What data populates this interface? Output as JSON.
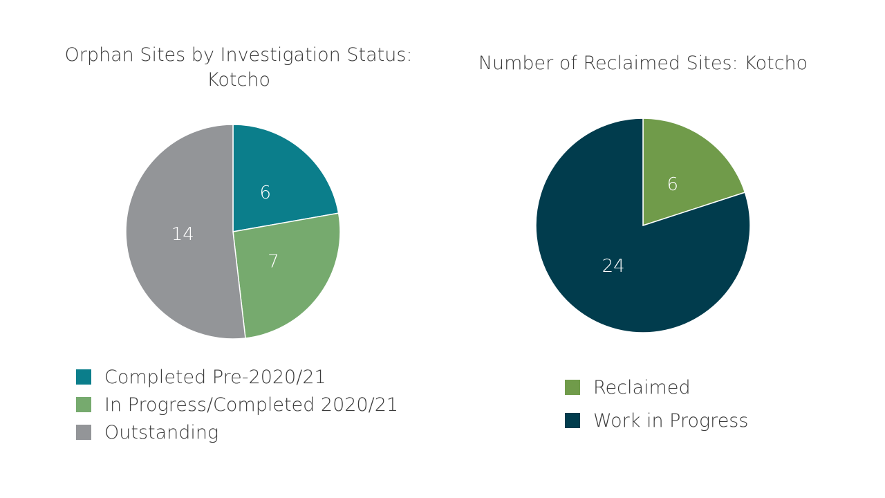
{
  "chart_data": [
    {
      "type": "pie",
      "title": "Orphan Sites by Investigation Status: Kotcho",
      "categories": [
        "Completed Pre-2020/21",
        "In Progress/Completed 2020/21",
        "Outstanding"
      ],
      "values": [
        6,
        7,
        14
      ],
      "data_labels": [
        "6",
        "7",
        "14"
      ],
      "colors": [
        "#0b7e8b",
        "#76aa6e",
        "#939598"
      ],
      "start_angle_deg": 0,
      "direction": "clockwise",
      "legend": "bottom"
    },
    {
      "type": "pie",
      "title": "Number of Reclaimed Sites: Kotcho",
      "categories": [
        "Reclaimed",
        "Work in Progress"
      ],
      "values": [
        6,
        24
      ],
      "data_labels": [
        "6",
        "24"
      ],
      "colors": [
        "#709b4a",
        "#013c4d"
      ],
      "start_angle_deg": 0,
      "direction": "clockwise",
      "legend": "bottom"
    }
  ]
}
